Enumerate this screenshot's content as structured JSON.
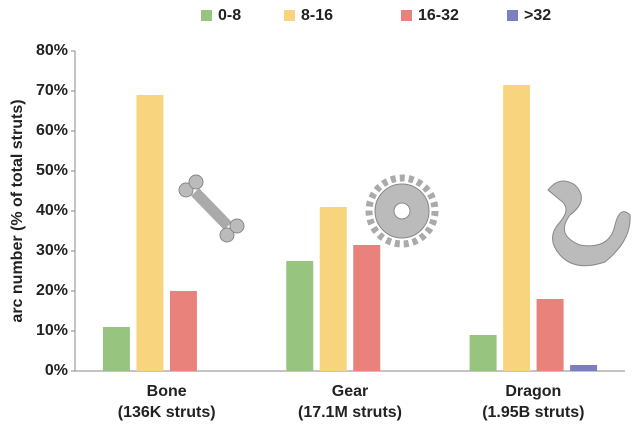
{
  "chart_data": {
    "type": "bar",
    "y_label": "arc number (% of total struts)",
    "categories": [
      [
        "Bone",
        "(136K struts)"
      ],
      [
        "Gear",
        "(17.1M struts)"
      ],
      [
        "Dragon",
        "(1.95B struts)"
      ]
    ],
    "series": [
      {
        "name": "0-8",
        "color": "#97c47e",
        "values": [
          11,
          27.5,
          9
        ]
      },
      {
        "name": "8-16",
        "color": "#f8d47f",
        "values": [
          69,
          41,
          71.5
        ]
      },
      {
        "name": "16-32",
        "color": "#e8827a",
        "values": [
          20,
          31.5,
          18
        ]
      },
      {
        "name": ">32",
        "color": "#7b7fbf",
        "values": [
          0,
          0,
          1.5
        ]
      }
    ],
    "ylim": [
      0,
      80
    ],
    "yticks": [
      {
        "value": 0,
        "label": "0%"
      },
      {
        "value": 10,
        "label": "10%"
      },
      {
        "value": 20,
        "label": "20%"
      },
      {
        "value": 30,
        "label": "30%"
      },
      {
        "value": 40,
        "label": "40%"
      },
      {
        "value": 50,
        "label": "50%"
      },
      {
        "value": 60,
        "label": "60%"
      },
      {
        "value": 70,
        "label": "70%"
      },
      {
        "value": 80,
        "label": "80%"
      }
    ],
    "legend": "top"
  }
}
